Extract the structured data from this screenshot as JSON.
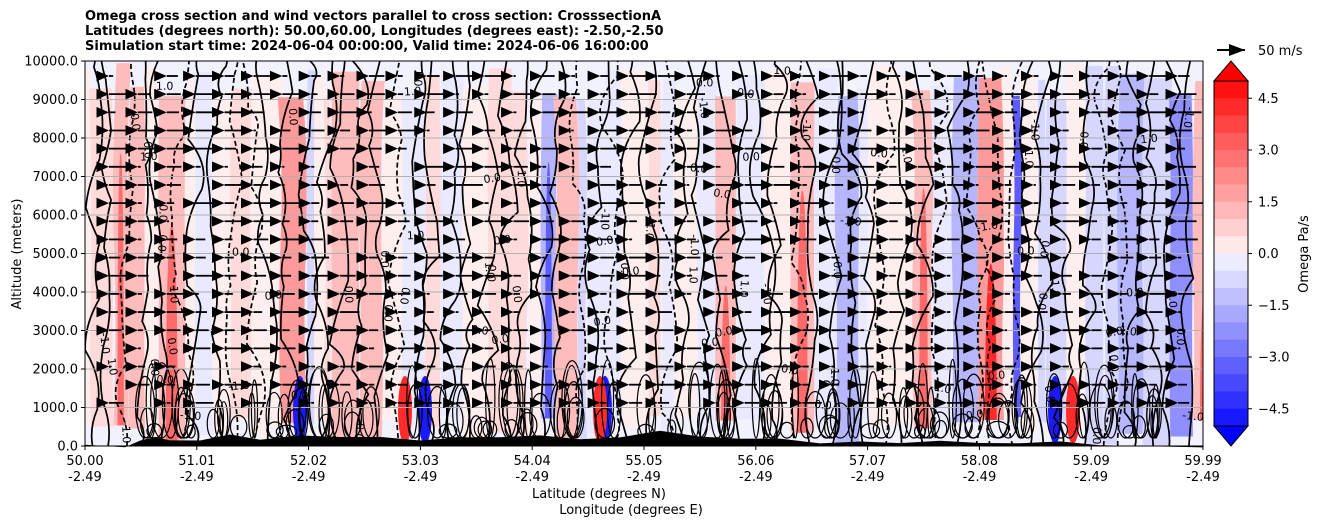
{
  "chart_data": {
    "type": "contour",
    "title": [
      "Omega cross section and wind vectors parallel to cross section: CrosssectionA",
      "Latitudes (degrees north): 50.00,60.00, Longitudes (degrees east): -2.50,-2.50",
      "Simulation start time: 2024-06-04 00:00:00, Valid time: 2024-06-06 16:00:00"
    ],
    "ylabel": "Altitude (meters)",
    "xlabel_line1": "Latitude (degrees N)",
    "xlabel_line2": "Longitude (degrees E)",
    "ylim": [
      0,
      10000
    ],
    "yticks": [
      "0.0",
      "1000.0",
      "2000.0",
      "3000.0",
      "4000.0",
      "5000.0",
      "6000.0",
      "7000.0",
      "8000.0",
      "9000.0",
      "10000.0"
    ],
    "xlim": [
      50.0,
      59.99
    ],
    "xticks": [
      {
        "lat": "50.00",
        "lon": "-2.49"
      },
      {
        "lat": "51.01",
        "lon": "-2.49"
      },
      {
        "lat": "52.02",
        "lon": "-2.49"
      },
      {
        "lat": "53.03",
        "lon": "-2.49"
      },
      {
        "lat": "54.04",
        "lon": "-2.49"
      },
      {
        "lat": "55.05",
        "lon": "-2.49"
      },
      {
        "lat": "56.06",
        "lon": "-2.49"
      },
      {
        "lat": "57.07",
        "lon": "-2.49"
      },
      {
        "lat": "58.08",
        "lon": "-2.49"
      },
      {
        "lat": "59.09",
        "lon": "-2.49"
      },
      {
        "lat": "59.99",
        "lon": "-2.49"
      }
    ],
    "grid": "horizontal",
    "colorbar": {
      "label": "Omega Pa/s",
      "range": [
        -5.0,
        5.0
      ],
      "extend": "both",
      "ticks": [
        "4.5",
        "3.0",
        "1.5",
        "0.0",
        "−1.5",
        "−3.0",
        "−4.5"
      ]
    },
    "quiver_key": {
      "label": "50 m/s"
    },
    "contour_labels": [
      "0.0",
      "1.0",
      "-1.0"
    ],
    "colors": {
      "positive": "#ff0000",
      "negative": "#0000ff",
      "terrain": "#000000",
      "grid": "#b0b0b0"
    }
  }
}
